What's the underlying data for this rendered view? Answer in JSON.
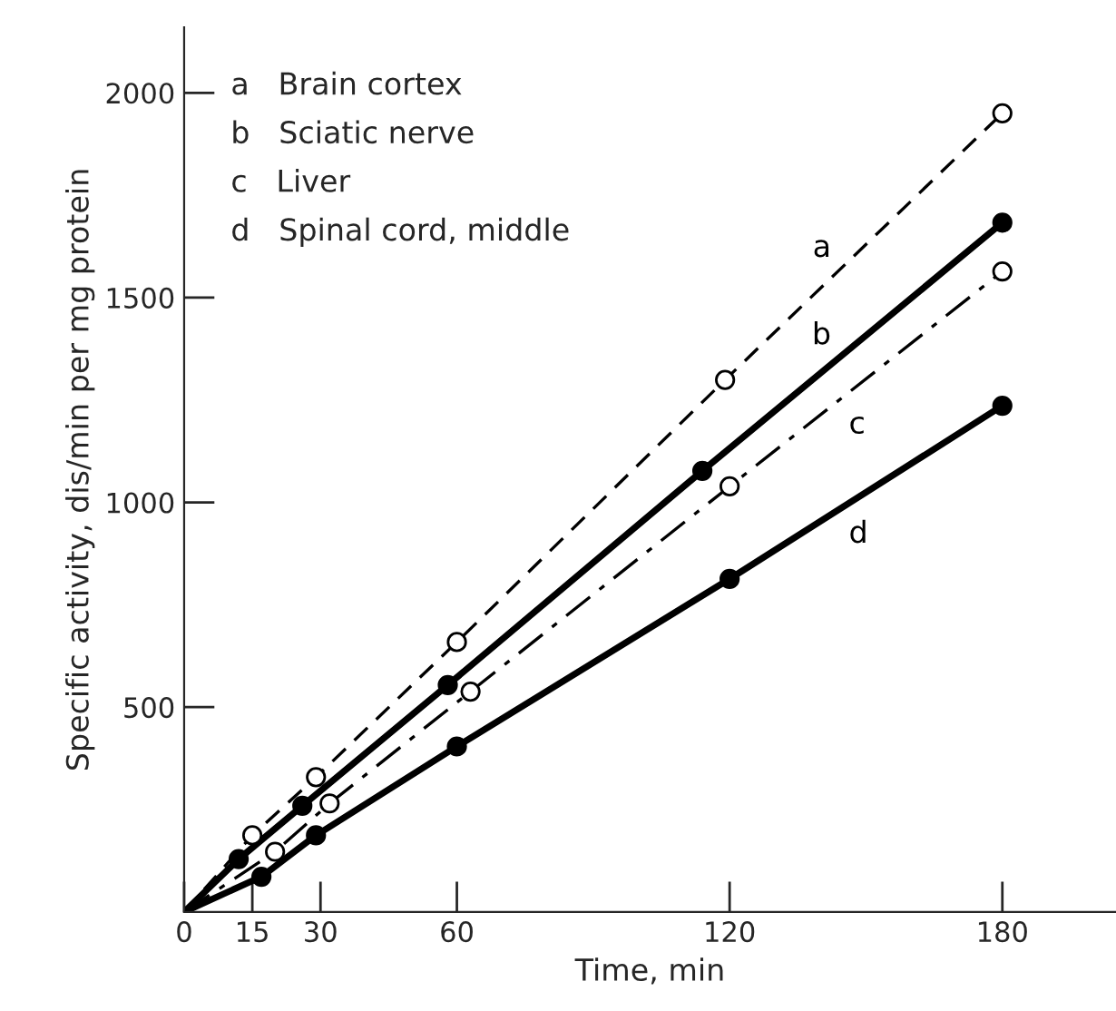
{
  "chart_data": {
    "type": "line",
    "xlabel": "Time, min",
    "ylabel": "Specific activity, dis/min per mg protein",
    "xlim": [
      0,
      205
    ],
    "ylim": [
      0,
      2160
    ],
    "xticks": [
      0,
      15,
      30,
      60,
      120,
      180
    ],
    "yticks": [
      500,
      1000,
      1500,
      2000
    ],
    "grid": false,
    "legend": false,
    "marker": "circle",
    "annotations": [
      "a   Brain cortex",
      "b   Sciatic nerve",
      "c   Liver",
      "d   Spinal cord, middle"
    ],
    "series": [
      {
        "name": "a",
        "color": "#000000",
        "line_style": "dashed",
        "x": [
          0,
          15,
          29,
          60,
          119,
          180
        ],
        "values": [
          0,
          187,
          329,
          659,
          1299,
          1950
        ]
      },
      {
        "name": "b",
        "color": "#000000",
        "line_style": "solid",
        "x": [
          0,
          12,
          26,
          58,
          114,
          180
        ],
        "values": [
          0,
          129,
          259,
          554,
          1077,
          1683
        ]
      },
      {
        "name": "c",
        "color": "#000000",
        "line_style": "dashdot",
        "x": [
          0,
          20,
          32,
          63,
          120,
          180
        ],
        "values": [
          0,
          147,
          265,
          538,
          1039,
          1564
        ]
      },
      {
        "name": "d",
        "color": "#000000",
        "line_style": "solid",
        "x": [
          0,
          17,
          29,
          60,
          120,
          180
        ],
        "values": [
          0,
          86,
          187,
          404,
          813,
          1236
        ]
      }
    ]
  }
}
